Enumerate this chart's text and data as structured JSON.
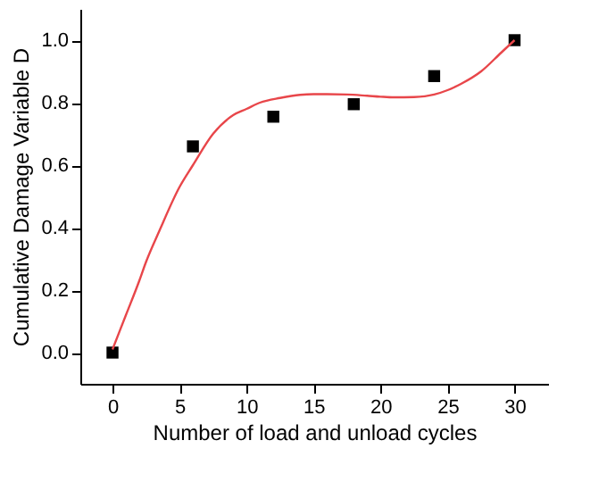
{
  "chart_data": {
    "type": "scatter",
    "xlabel": "Number of load and unload cycles",
    "ylabel": "Cumulative Damage Variable D",
    "xlim": [
      -2.4,
      32.5
    ],
    "ylim": [
      -0.1,
      1.1
    ],
    "xticks": [
      0,
      5,
      10,
      15,
      20,
      25,
      30
    ],
    "yticks": [
      {
        "value": 0,
        "label": "0.0"
      },
      {
        "value": 0.2,
        "label": "0.2"
      },
      {
        "value": 0.4,
        "label": "0.4"
      },
      {
        "value": 0.6,
        "label": "0.6"
      },
      {
        "value": 0.8,
        "label": "0.8"
      },
      {
        "value": 1,
        "label": "1.0"
      }
    ],
    "grid": false,
    "series": [
      {
        "marker": "square",
        "color": "#000000",
        "x": [
          0,
          6,
          12,
          18,
          24,
          30
        ],
        "values": [
          0,
          0.66,
          0.755,
          0.795,
          0.885,
          1.0
        ]
      },
      {
        "type": "line",
        "marker": "none",
        "color": "#e8464a",
        "line_style": "solid",
        "x": [
          0,
          1,
          2,
          2.5,
          3.5,
          5,
          6,
          7.5,
          9,
          10,
          11,
          12.5,
          14,
          15,
          16,
          17.5,
          19,
          20,
          21,
          22.5,
          24,
          25,
          26,
          27.5,
          29,
          30
        ],
        "values": [
          0.01,
          0.12,
          0.23,
          0.29,
          0.39,
          0.53,
          0.6,
          0.7,
          0.76,
          0.78,
          0.8,
          0.815,
          0.825,
          0.827,
          0.827,
          0.826,
          0.822,
          0.819,
          0.817,
          0.818,
          0.826,
          0.84,
          0.86,
          0.9,
          0.96,
          1.0
        ]
      }
    ]
  }
}
